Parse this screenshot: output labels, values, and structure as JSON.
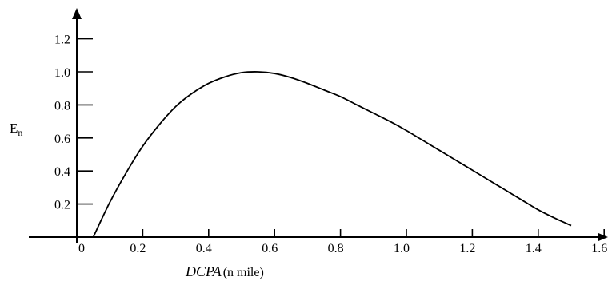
{
  "chart_data": {
    "type": "line",
    "title": "",
    "ylabel": {
      "main": "E",
      "subscript": "n"
    },
    "xlabel": {
      "main": "DCPA",
      "unit": "(n mile)"
    },
    "xlim": [
      0,
      1.6
    ],
    "ylim": [
      0,
      1.2
    ],
    "x_ticks": [
      {
        "value": 0,
        "label": "0"
      },
      {
        "value": 0.2,
        "label": "0.2"
      },
      {
        "value": 0.4,
        "label": "0.4"
      },
      {
        "value": 0.6,
        "label": "0.6"
      },
      {
        "value": 0.8,
        "label": "0.8"
      },
      {
        "value": 1.0,
        "label": "1.0"
      },
      {
        "value": 1.2,
        "label": "1.2"
      },
      {
        "value": 1.4,
        "label": "1.4"
      },
      {
        "value": 1.6,
        "label": "1.6"
      }
    ],
    "y_ticks": [
      {
        "value": 0.2,
        "label": "0.2"
      },
      {
        "value": 0.4,
        "label": "0.4"
      },
      {
        "value": 0.6,
        "label": "0.6"
      },
      {
        "value": 0.8,
        "label": "0.8"
      },
      {
        "value": 1.0,
        "label": "1.0"
      },
      {
        "value": 1.2,
        "label": "1.2"
      }
    ],
    "grid": false,
    "legend": "none",
    "series": [
      {
        "x": [
          0.05,
          0.1,
          0.15,
          0.2,
          0.25,
          0.3,
          0.35,
          0.4,
          0.45,
          0.5,
          0.55,
          0.6,
          0.65,
          0.7,
          0.75,
          0.8,
          0.85,
          0.9,
          0.95,
          1.0,
          1.05,
          1.1,
          1.15,
          1.2,
          1.25,
          1.3,
          1.35,
          1.4,
          1.45,
          1.5
        ],
        "y": [
          0.0,
          0.21,
          0.39,
          0.55,
          0.68,
          0.79,
          0.87,
          0.93,
          0.97,
          0.995,
          1.0,
          0.99,
          0.965,
          0.93,
          0.89,
          0.85,
          0.8,
          0.75,
          0.7,
          0.645,
          0.585,
          0.525,
          0.465,
          0.405,
          0.345,
          0.285,
          0.225,
          0.165,
          0.115,
          0.07
        ]
      }
    ],
    "colors": {
      "axis": "#000000",
      "line": "#000000",
      "background": "#ffffff"
    }
  }
}
